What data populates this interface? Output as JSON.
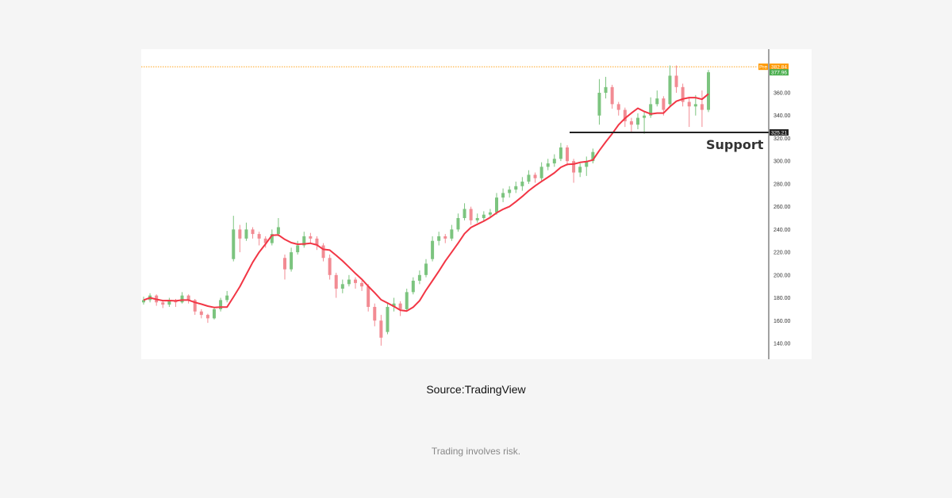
{
  "chart_data": {
    "type": "candlestick",
    "y_ticks": [
      140,
      160,
      180,
      200,
      220,
      240,
      260,
      280,
      300,
      320,
      340,
      360
    ],
    "y_tick_labels": [
      "140.00",
      "160.00",
      "180.00",
      "200.00",
      "220.00",
      "240.00",
      "260.00",
      "280.00",
      "300.00",
      "320.00",
      "340.00",
      "360.00"
    ],
    "ylim": [
      126,
      393
    ],
    "ohlc": [
      [
        176,
        181,
        174,
        178
      ],
      [
        178,
        184,
        176,
        182
      ],
      [
        182,
        183,
        173,
        176
      ],
      [
        176,
        178,
        171,
        174
      ],
      [
        174,
        180,
        172,
        178
      ],
      [
        178,
        179,
        172,
        176
      ],
      [
        176,
        185,
        175,
        182
      ],
      [
        182,
        183,
        175,
        178
      ],
      [
        178,
        179,
        165,
        168
      ],
      [
        168,
        170,
        162,
        165
      ],
      [
        165,
        166,
        158,
        162
      ],
      [
        162,
        172,
        161,
        170
      ],
      [
        170,
        180,
        168,
        178
      ],
      [
        178,
        186,
        176,
        182
      ],
      [
        214,
        252,
        212,
        240
      ],
      [
        240,
        244,
        220,
        232
      ],
      [
        232,
        246,
        230,
        240
      ],
      [
        240,
        242,
        232,
        236
      ],
      [
        236,
        238,
        226,
        232
      ],
      [
        232,
        234,
        224,
        228
      ],
      [
        228,
        240,
        226,
        236
      ],
      [
        236,
        250,
        234,
        242
      ],
      [
        215,
        218,
        196,
        205
      ],
      [
        205,
        224,
        203,
        220
      ],
      [
        220,
        230,
        218,
        226
      ],
      [
        226,
        238,
        224,
        234
      ],
      [
        234,
        237,
        228,
        232
      ],
      [
        232,
        234,
        222,
        226
      ],
      [
        226,
        228,
        212,
        215
      ],
      [
        215,
        218,
        196,
        200
      ],
      [
        200,
        202,
        180,
        188
      ],
      [
        188,
        196,
        184,
        192
      ],
      [
        192,
        200,
        190,
        196
      ],
      [
        196,
        198,
        188,
        193
      ],
      [
        193,
        195,
        186,
        190
      ],
      [
        190,
        192,
        168,
        172
      ],
      [
        172,
        175,
        155,
        160
      ],
      [
        160,
        165,
        138,
        145
      ],
      [
        150,
        176,
        148,
        172
      ],
      [
        172,
        180,
        168,
        175
      ],
      [
        175,
        177,
        164,
        170
      ],
      [
        170,
        188,
        168,
        185
      ],
      [
        185,
        198,
        183,
        195
      ],
      [
        195,
        204,
        192,
        200
      ],
      [
        200,
        214,
        198,
        210
      ],
      [
        214,
        234,
        212,
        230
      ],
      [
        230,
        238,
        226,
        234
      ],
      [
        234,
        236,
        228,
        232
      ],
      [
        232,
        244,
        230,
        240
      ],
      [
        240,
        254,
        238,
        250
      ],
      [
        250,
        263,
        248,
        258
      ],
      [
        258,
        260,
        244,
        248
      ],
      [
        248,
        254,
        246,
        250
      ],
      [
        250,
        256,
        247,
        253
      ],
      [
        253,
        258,
        250,
        255
      ],
      [
        255,
        272,
        253,
        268
      ],
      [
        268,
        276,
        264,
        272
      ],
      [
        272,
        278,
        268,
        275
      ],
      [
        275,
        282,
        272,
        278
      ],
      [
        278,
        286,
        274,
        282
      ],
      [
        282,
        292,
        280,
        288
      ],
      [
        288,
        290,
        281,
        285
      ],
      [
        285,
        299,
        283,
        295
      ],
      [
        295,
        302,
        292,
        298
      ],
      [
        298,
        306,
        295,
        302
      ],
      [
        302,
        316,
        300,
        312
      ],
      [
        312,
        314,
        296,
        300
      ],
      [
        300,
        302,
        281,
        290
      ],
      [
        290,
        298,
        286,
        295
      ],
      [
        295,
        304,
        287,
        300
      ],
      [
        300,
        311,
        298,
        308
      ],
      [
        340,
        372,
        332,
        360
      ],
      [
        360,
        374,
        355,
        365
      ],
      [
        365,
        367,
        346,
        350
      ],
      [
        350,
        352,
        340,
        345
      ],
      [
        345,
        347,
        330,
        335
      ],
      [
        335,
        338,
        325,
        332
      ],
      [
        332,
        342,
        328,
        338
      ],
      [
        338,
        344,
        324,
        340
      ],
      [
        340,
        356,
        338,
        350
      ],
      [
        350,
        362,
        348,
        355
      ],
      [
        355,
        357,
        340,
        345
      ],
      [
        350,
        384,
        348,
        375
      ],
      [
        375,
        384,
        360,
        365
      ],
      [
        365,
        368,
        348,
        352
      ],
      [
        352,
        356,
        330,
        348
      ],
      [
        348,
        358,
        340,
        350
      ],
      [
        350,
        362,
        330,
        345
      ],
      [
        345,
        380,
        343,
        378
      ]
    ],
    "support": {
      "value": 325.21,
      "label": "Support",
      "value_label": "325.21"
    },
    "premarket": {
      "value": 382.84,
      "tag": "Pre",
      "value_label": "382.84"
    },
    "last": {
      "value": 377.96,
      "value_label": "377.96"
    },
    "moving_average": true,
    "colors": {
      "up": "#7cc47f",
      "down": "#f28b93",
      "ma": "#f23645",
      "pre": "#ff9800",
      "last": "#4caf50",
      "support": "#222222"
    },
    "grid": false
  },
  "caption": {
    "source": "Source:TradingView",
    "disclaimer": "Trading involves risk."
  }
}
